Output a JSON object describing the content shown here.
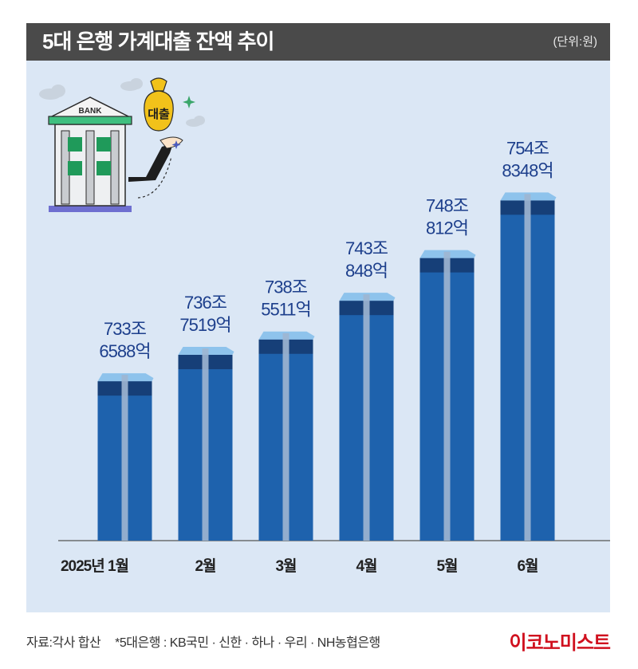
{
  "header": {
    "title": "5대 은행 가계대출 잔액 추이",
    "unit": "(단위:원)"
  },
  "illustration": {
    "bank_sign": "BANK",
    "bag_label": "대출",
    "icons": [
      "bank-building-icon",
      "money-bag-icon",
      "hand-icon",
      "cloud-icon",
      "sparkle-icon"
    ]
  },
  "chart_data": {
    "type": "bar",
    "categories": [
      "2025년 1월",
      "2월",
      "3월",
      "4월",
      "5월",
      "6월"
    ],
    "values": [
      733.6588,
      736.7519,
      738.5511,
      743.0848,
      748.0812,
      754.8348
    ],
    "value_labels": [
      [
        "733조",
        "6588억"
      ],
      [
        "736조",
        "7519억"
      ],
      [
        "738조",
        "5511억"
      ],
      [
        "743조",
        "848억"
      ],
      [
        "748조",
        "812억"
      ],
      [
        "754조",
        "8348억"
      ]
    ],
    "unit": "원",
    "ylim": [
      715,
      760
    ],
    "grid": false,
    "colors": {
      "bar": "#1e62ad",
      "bar_top": "#163f78",
      "highlight": "#9fb6d1",
      "background": "#dbe7f5"
    }
  },
  "footer": {
    "source": "자료:각사 합산",
    "note": "*5대은행 : KB국민 · 신한 · 하나 · 우리 · NH농협은행",
    "brand": "이코노미스트"
  }
}
